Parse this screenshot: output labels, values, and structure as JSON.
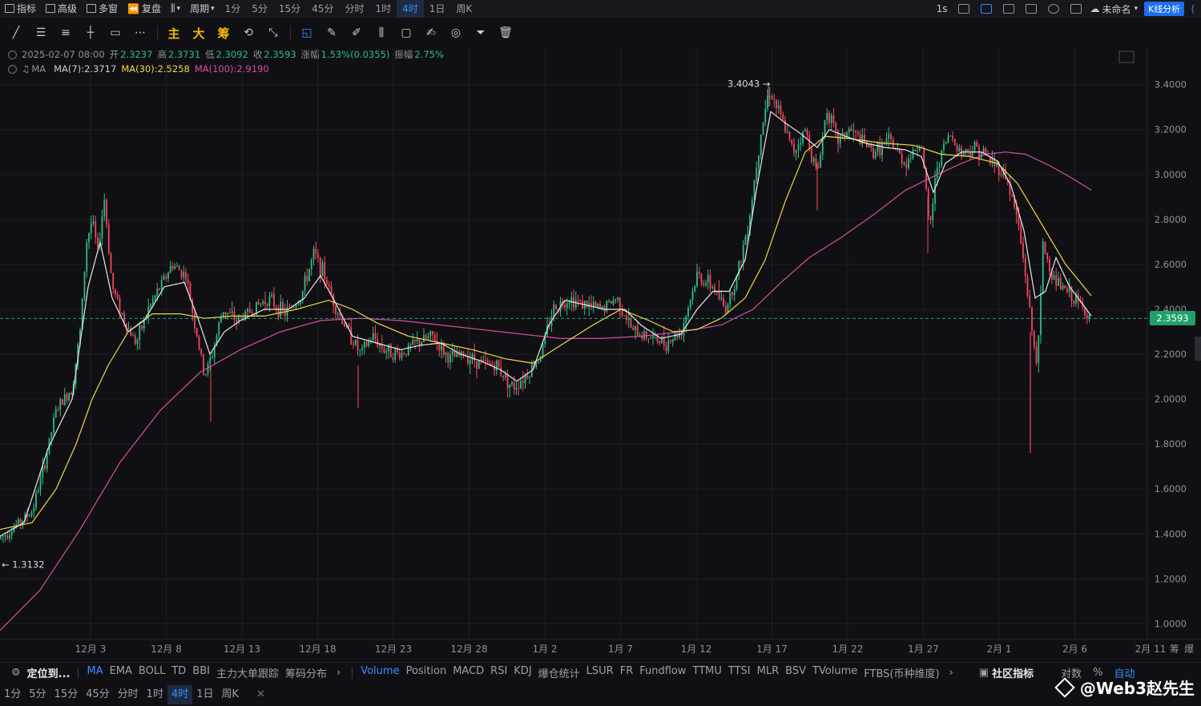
{
  "topbar": {
    "indicator": "指标",
    "advanced": "高级",
    "multi_window": "多窗",
    "replay": "复盘",
    "chart_type": "",
    "period": "周期",
    "intervals": [
      "1分",
      "5分",
      "15分",
      "45分",
      "分时",
      "1时",
      "4时",
      "1日",
      "周K"
    ],
    "active_interval": "4时",
    "refresh": "1s",
    "layout_name": "未命名",
    "kline_analysis": "K线分析"
  },
  "drawing_tools": {
    "main": "主",
    "big": "大",
    "chips": "筹"
  },
  "info": {
    "date": "2025-02-07 08:00",
    "open_label": "开",
    "open": "2.3237",
    "high_label": "高",
    "high": "2.3731",
    "low_label": "低",
    "low": "2.3092",
    "close_label": "收",
    "close": "2.3593",
    "change_label": "涨幅",
    "change": "1.53%(0.0355)",
    "amp_label": "振幅",
    "amp": "2.75%",
    "ma_label": "MA",
    "ma7": "MA(7):2.3717",
    "ma30": "MA(30):2.5258",
    "ma100": "MA(100):2.9190"
  },
  "colors": {
    "up": "#2ebd85",
    "down": "#f6465d",
    "ma7": "#e8e8e8",
    "ma30": "#f0d94a",
    "ma100": "#d64ea8",
    "accent": "#3a8dff"
  },
  "chart_data": {
    "type": "candlestick",
    "y_ticks": [
      "3.4000",
      "3.2000",
      "3.0000",
      "2.8000",
      "2.6000",
      "2.4000",
      "2.2000",
      "2.0000",
      "1.8000",
      "1.6000",
      "1.4000",
      "1.2000",
      "1.0000"
    ],
    "ylim": [
      0.93,
      3.57
    ],
    "x_ticks": [
      "12月 3",
      "12月 8",
      "12月 13",
      "12月 18",
      "12月 23",
      "12月 28",
      "1月 2",
      "1月 7",
      "1月 12",
      "1月 17",
      "1月 22",
      "1月 27",
      "2月 1",
      "2月 6",
      "2月 11"
    ],
    "last_price": "2.3593",
    "high_marker": "3.4043",
    "low_marker": "1.3132",
    "price_path": [
      [
        0,
        1.38
      ],
      [
        20,
        1.44
      ],
      [
        40,
        1.5
      ],
      [
        55,
        1.7
      ],
      [
        70,
        1.95
      ],
      [
        90,
        2.05
      ],
      [
        100,
        2.3
      ],
      [
        108,
        2.7
      ],
      [
        115,
        2.8
      ],
      [
        122,
        2.65
      ],
      [
        130,
        2.9
      ],
      [
        140,
        2.5
      ],
      [
        155,
        2.35
      ],
      [
        170,
        2.25
      ],
      [
        185,
        2.4
      ],
      [
        200,
        2.5
      ],
      [
        215,
        2.6
      ],
      [
        232,
        2.55
      ],
      [
        245,
        2.3
      ],
      [
        255,
        2.1
      ],
      [
        265,
        2.2
      ],
      [
        278,
        2.4
      ],
      [
        295,
        2.35
      ],
      [
        315,
        2.4
      ],
      [
        335,
        2.45
      ],
      [
        355,
        2.38
      ],
      [
        375,
        2.45
      ],
      [
        392,
        2.65
      ],
      [
        405,
        2.55
      ],
      [
        420,
        2.4
      ],
      [
        435,
        2.3
      ],
      [
        450,
        2.2
      ],
      [
        465,
        2.28
      ],
      [
        480,
        2.22
      ],
      [
        500,
        2.2
      ],
      [
        520,
        2.25
      ],
      [
        540,
        2.28
      ],
      [
        560,
        2.18
      ],
      [
        580,
        2.2
      ],
      [
        600,
        2.16
      ],
      [
        620,
        2.15
      ],
      [
        640,
        2.05
      ],
      [
        660,
        2.12
      ],
      [
        675,
        2.2
      ],
      [
        690,
        2.4
      ],
      [
        710,
        2.45
      ],
      [
        730,
        2.42
      ],
      [
        750,
        2.4
      ],
      [
        770,
        2.45
      ],
      [
        790,
        2.3
      ],
      [
        810,
        2.28
      ],
      [
        830,
        2.25
      ],
      [
        850,
        2.3
      ],
      [
        870,
        2.55
      ],
      [
        890,
        2.5
      ],
      [
        905,
        2.4
      ],
      [
        920,
        2.55
      ],
      [
        935,
        2.8
      ],
      [
        950,
        3.2
      ],
      [
        960,
        3.38
      ],
      [
        975,
        3.25
      ],
      [
        990,
        3.1
      ],
      [
        1005,
        3.2
      ],
      [
        1020,
        3.0
      ],
      [
        1032,
        3.3
      ],
      [
        1045,
        3.15
      ],
      [
        1060,
        3.2
      ],
      [
        1075,
        3.15
      ],
      [
        1090,
        3.1
      ],
      [
        1110,
        3.15
      ],
      [
        1130,
        3.05
      ],
      [
        1150,
        3.15
      ],
      [
        1160,
        2.75
      ],
      [
        1170,
        3.05
      ],
      [
        1185,
        3.18
      ],
      [
        1200,
        3.1
      ],
      [
        1220,
        3.12
      ],
      [
        1240,
        3.05
      ],
      [
        1255,
        3.0
      ],
      [
        1270,
        2.8
      ],
      [
        1280,
        2.55
      ],
      [
        1288,
        2.3
      ],
      [
        1295,
        2.15
      ],
      [
        1302,
        2.7
      ],
      [
        1312,
        2.55
      ],
      [
        1325,
        2.5
      ],
      [
        1340,
        2.45
      ],
      [
        1352,
        2.4
      ],
      [
        1362,
        2.36
      ]
    ],
    "ma7": [
      [
        0,
        1.39
      ],
      [
        30,
        1.45
      ],
      [
        60,
        1.78
      ],
      [
        90,
        2.0
      ],
      [
        110,
        2.5
      ],
      [
        125,
        2.7
      ],
      [
        140,
        2.45
      ],
      [
        160,
        2.3
      ],
      [
        180,
        2.35
      ],
      [
        205,
        2.5
      ],
      [
        230,
        2.52
      ],
      [
        248,
        2.35
      ],
      [
        262,
        2.2
      ],
      [
        280,
        2.3
      ],
      [
        300,
        2.35
      ],
      [
        330,
        2.4
      ],
      [
        360,
        2.4
      ],
      [
        380,
        2.45
      ],
      [
        400,
        2.55
      ],
      [
        420,
        2.42
      ],
      [
        440,
        2.28
      ],
      [
        470,
        2.25
      ],
      [
        500,
        2.22
      ],
      [
        525,
        2.24
      ],
      [
        550,
        2.25
      ],
      [
        575,
        2.2
      ],
      [
        600,
        2.17
      ],
      [
        625,
        2.13
      ],
      [
        645,
        2.08
      ],
      [
        665,
        2.13
      ],
      [
        685,
        2.33
      ],
      [
        705,
        2.44
      ],
      [
        730,
        2.42
      ],
      [
        755,
        2.4
      ],
      [
        780,
        2.4
      ],
      [
        800,
        2.33
      ],
      [
        825,
        2.27
      ],
      [
        850,
        2.29
      ],
      [
        870,
        2.4
      ],
      [
        890,
        2.48
      ],
      [
        910,
        2.48
      ],
      [
        930,
        2.62
      ],
      [
        945,
        2.95
      ],
      [
        962,
        3.28
      ],
      [
        980,
        3.23
      ],
      [
        1000,
        3.18
      ],
      [
        1020,
        3.12
      ],
      [
        1035,
        3.2
      ],
      [
        1055,
        3.17
      ],
      [
        1080,
        3.14
      ],
      [
        1105,
        3.12
      ],
      [
        1130,
        3.11
      ],
      [
        1150,
        3.08
      ],
      [
        1165,
        2.92
      ],
      [
        1180,
        3.05
      ],
      [
        1200,
        3.1
      ],
      [
        1225,
        3.1
      ],
      [
        1245,
        3.06
      ],
      [
        1262,
        2.95
      ],
      [
        1278,
        2.75
      ],
      [
        1292,
        2.45
      ],
      [
        1305,
        2.48
      ],
      [
        1318,
        2.63
      ],
      [
        1335,
        2.5
      ],
      [
        1350,
        2.43
      ],
      [
        1362,
        2.37
      ]
    ],
    "ma30": [
      [
        0,
        1.42
      ],
      [
        40,
        1.45
      ],
      [
        70,
        1.6
      ],
      [
        95,
        1.8
      ],
      [
        115,
        2.0
      ],
      [
        135,
        2.15
      ],
      [
        160,
        2.3
      ],
      [
        190,
        2.38
      ],
      [
        225,
        2.38
      ],
      [
        255,
        2.36
      ],
      [
        290,
        2.37
      ],
      [
        330,
        2.37
      ],
      [
        370,
        2.4
      ],
      [
        410,
        2.44
      ],
      [
        440,
        2.4
      ],
      [
        470,
        2.34
      ],
      [
        510,
        2.28
      ],
      [
        550,
        2.25
      ],
      [
        590,
        2.22
      ],
      [
        630,
        2.18
      ],
      [
        665,
        2.16
      ],
      [
        700,
        2.24
      ],
      [
        740,
        2.33
      ],
      [
        775,
        2.4
      ],
      [
        810,
        2.35
      ],
      [
        840,
        2.3
      ],
      [
        870,
        2.31
      ],
      [
        900,
        2.36
      ],
      [
        930,
        2.45
      ],
      [
        955,
        2.62
      ],
      [
        980,
        2.88
      ],
      [
        1005,
        3.1
      ],
      [
        1030,
        3.17
      ],
      [
        1060,
        3.16
      ],
      [
        1100,
        3.14
      ],
      [
        1140,
        3.13
      ],
      [
        1175,
        3.09
      ],
      [
        1210,
        3.08
      ],
      [
        1245,
        3.05
      ],
      [
        1270,
        2.96
      ],
      [
        1300,
        2.78
      ],
      [
        1330,
        2.6
      ],
      [
        1362,
        2.46
      ]
    ],
    "ma100": [
      [
        0,
        0.97
      ],
      [
        50,
        1.15
      ],
      [
        100,
        1.42
      ],
      [
        150,
        1.72
      ],
      [
        200,
        1.95
      ],
      [
        250,
        2.12
      ],
      [
        300,
        2.22
      ],
      [
        350,
        2.3
      ],
      [
        400,
        2.35
      ],
      [
        450,
        2.36
      ],
      [
        500,
        2.35
      ],
      [
        550,
        2.33
      ],
      [
        600,
        2.31
      ],
      [
        650,
        2.29
      ],
      [
        700,
        2.27
      ],
      [
        750,
        2.27
      ],
      [
        800,
        2.28
      ],
      [
        850,
        2.3
      ],
      [
        900,
        2.33
      ],
      [
        940,
        2.4
      ],
      [
        975,
        2.52
      ],
      [
        1010,
        2.63
      ],
      [
        1050,
        2.72
      ],
      [
        1090,
        2.82
      ],
      [
        1130,
        2.93
      ],
      [
        1170,
        3.0
      ],
      [
        1200,
        3.05
      ],
      [
        1230,
        3.09
      ],
      [
        1255,
        3.1
      ],
      [
        1280,
        3.09
      ],
      [
        1310,
        3.04
      ],
      [
        1340,
        2.98
      ],
      [
        1362,
        2.93
      ]
    ]
  },
  "bottom": {
    "locate": "定位到...",
    "main_indicators": [
      "MA",
      "EMA",
      "BOLL",
      "TD",
      "BBI",
      "主力大单跟踪",
      "筹码分布"
    ],
    "active_main": "MA",
    "sub_indicators": [
      "Volume",
      "Position",
      "MACD",
      "RSI",
      "KDJ",
      "爆仓统计",
      "LSUR",
      "FR",
      "Fundflow",
      "TTMU",
      "TTSI",
      "MLR",
      "BSV",
      "TVolume",
      "FTBS(币种维度)"
    ],
    "active_sub": "Volume",
    "community": "社区指标",
    "log": "对数",
    "percent": "%",
    "auto": "自动",
    "intervals": [
      "1分",
      "5分",
      "15分",
      "45分",
      "分时",
      "1时",
      "4时",
      "1日",
      "周K"
    ],
    "active_interval": "4时",
    "watermark": "@Web3赵先生",
    "chips_axis": "筹",
    "liq_axis": "爆"
  }
}
